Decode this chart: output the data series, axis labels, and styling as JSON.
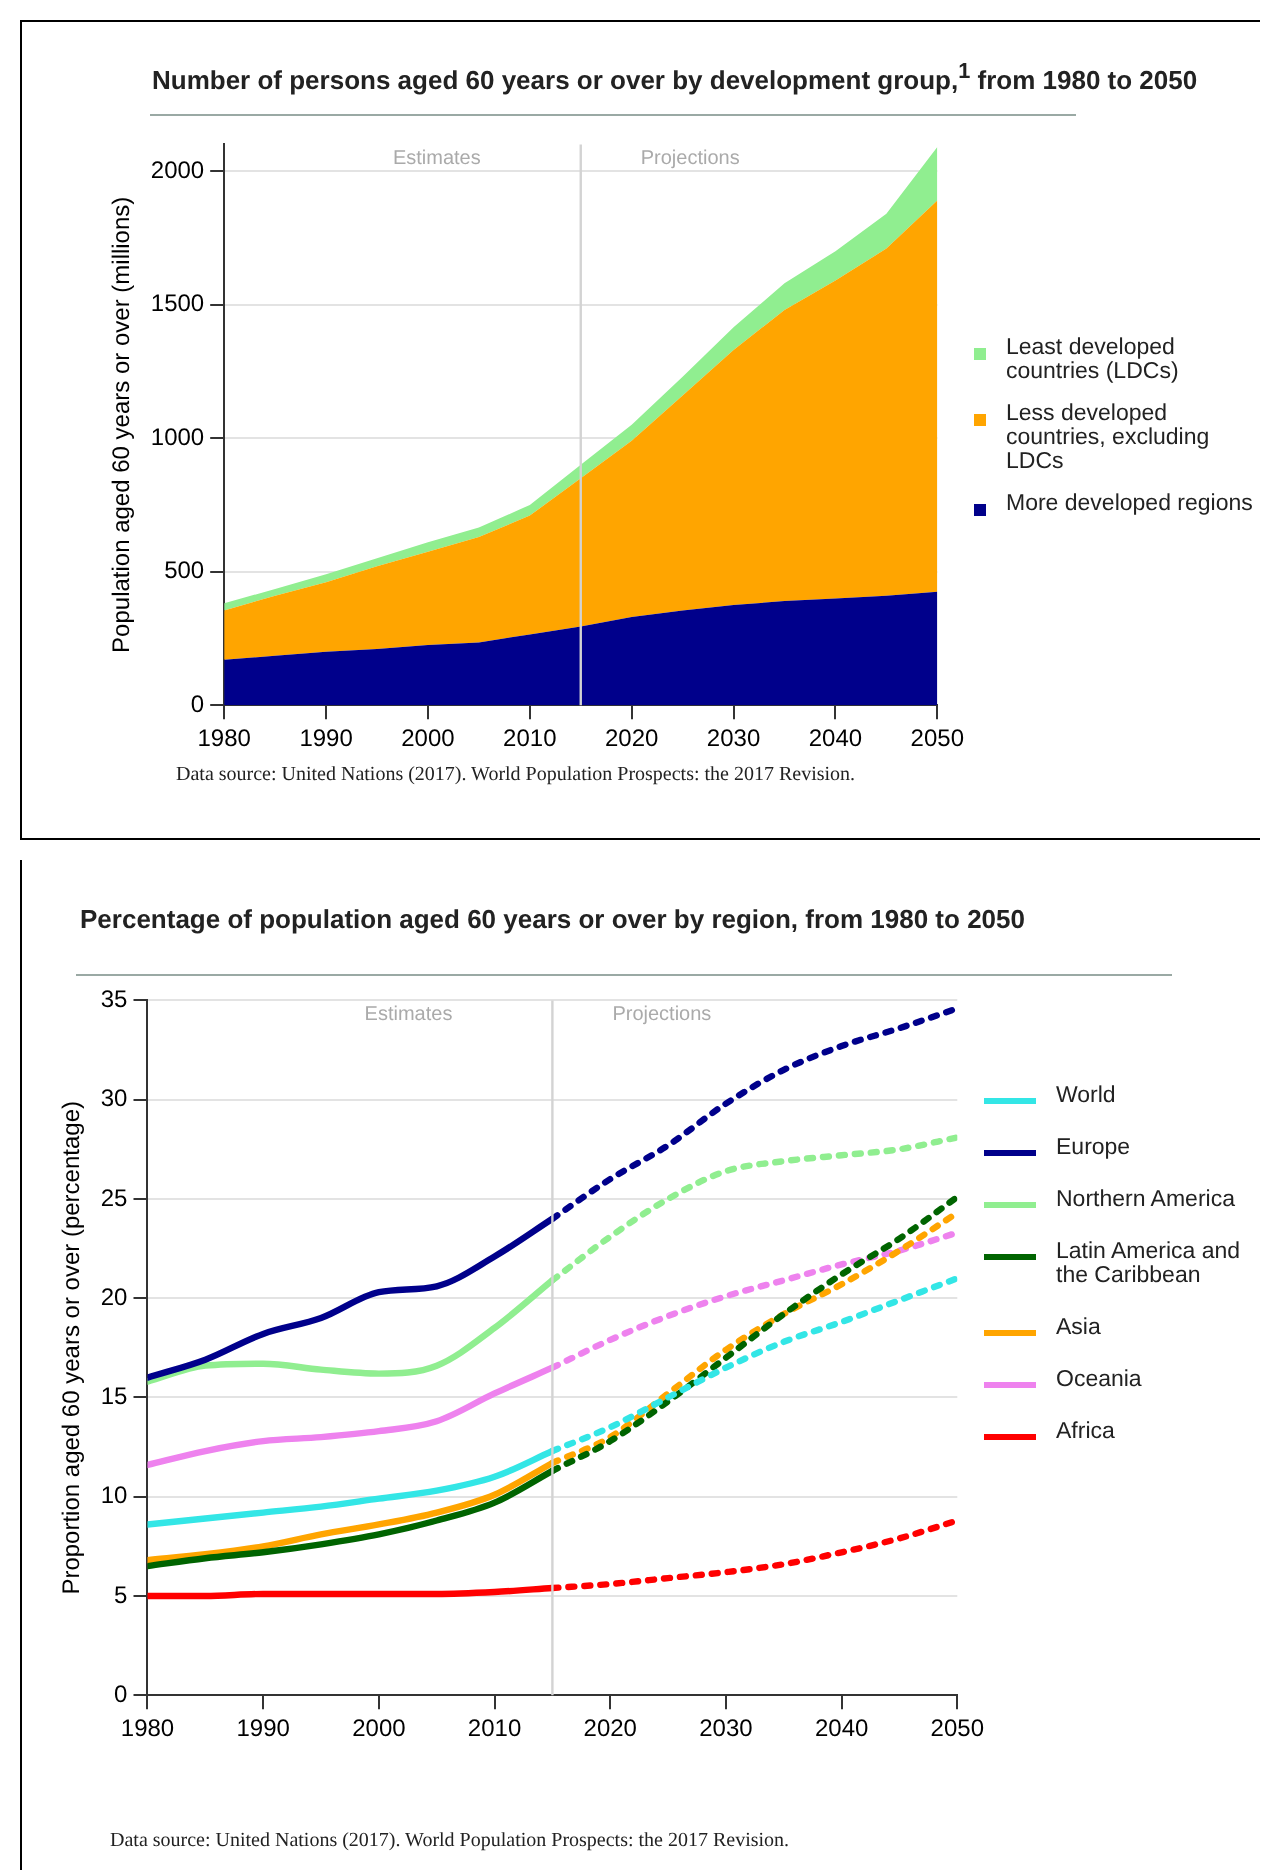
{
  "chart_data": [
    {
      "type": "area",
      "stacked": true,
      "title": "Number of persons aged 60 years or over by development group,$^{1}$ from 1980 to 2050",
      "ylabel": "Population aged 60 years or over (millions)",
      "x": [
        1980,
        1985,
        1990,
        1995,
        2000,
        2005,
        2010,
        2015,
        2020,
        2025,
        2030,
        2035,
        2040,
        2045,
        2050
      ],
      "series": [
        {
          "name": "More developed regions",
          "color": "#00008b",
          "values": [
            170,
            185,
            200,
            210,
            225,
            235,
            265,
            295,
            330,
            355,
            375,
            390,
            400,
            410,
            425
          ]
        },
        {
          "name": "Less developed countries, excluding LDCs",
          "color": "#ffa500",
          "values": [
            185,
            225,
            260,
            310,
            350,
            395,
            445,
            555,
            660,
            805,
            955,
            1090,
            1190,
            1300,
            1465
          ]
        },
        {
          "name": "Least developed countries (LDCs)",
          "color": "#90ee90",
          "values": [
            27,
            25,
            30,
            30,
            35,
            35,
            40,
            50,
            60,
            70,
            85,
            100,
            110,
            130,
            200
          ]
        }
      ],
      "xlim": [
        1980,
        2050
      ],
      "xticks": [
        1980,
        1990,
        2000,
        2010,
        2020,
        2030,
        2040,
        2050
      ],
      "ylim": [
        0,
        2100
      ],
      "yticks": [
        0,
        500,
        1000,
        1500,
        2000
      ],
      "grid": "y",
      "legend": "right",
      "ref_lines": [
        {
          "axis": "x",
          "value": 2015,
          "color": "#d3d3d3"
        }
      ],
      "annotations": [
        "Estimates",
        "Projections",
        "Data source: United Nations (2017). World Population Prospects: the 2017 Revision."
      ]
    },
    {
      "type": "line",
      "title": "Percentage of population aged 60 years or over by region, from 1980 to 2050",
      "ylabel": "Proportion aged 60 years or over (percentage)",
      "x": [
        1980,
        1985,
        1990,
        1995,
        2000,
        2005,
        2010,
        2015,
        2020,
        2025,
        2030,
        2035,
        2040,
        2045,
        2050
      ],
      "series": [
        {
          "name": "World",
          "color": "#33e6e6",
          "values": [
            8.6,
            8.9,
            9.2,
            9.5,
            9.9,
            10.3,
            11.0,
            12.3,
            null,
            null,
            null,
            null,
            null,
            null,
            null
          ]
        },
        {
          "name": "Europe",
          "color": "#00008b",
          "values": [
            16.0,
            16.9,
            18.2,
            19.0,
            20.3,
            20.6,
            22.1,
            24.0,
            null,
            null,
            null,
            null,
            null,
            null,
            null
          ]
        },
        {
          "name": "Northern America",
          "color": "#90ee90",
          "values": [
            15.8,
            16.6,
            16.7,
            16.4,
            16.2,
            16.6,
            18.5,
            20.9,
            null,
            null,
            null,
            null,
            null,
            null,
            null
          ]
        },
        {
          "name": "Latin America and the Caribbean",
          "color": "#006400",
          "values": [
            6.5,
            6.9,
            7.2,
            7.6,
            8.1,
            8.8,
            9.7,
            11.3,
            null,
            null,
            null,
            null,
            null,
            null,
            null
          ]
        },
        {
          "name": "Asia",
          "color": "#ffa500",
          "values": [
            6.8,
            7.1,
            7.5,
            8.1,
            8.6,
            9.2,
            10.1,
            11.7,
            null,
            null,
            null,
            null,
            null,
            null,
            null
          ]
        },
        {
          "name": "Oceania",
          "color": "#ee82ee",
          "values": [
            11.6,
            12.3,
            12.8,
            13.0,
            13.3,
            13.8,
            15.2,
            16.5,
            null,
            null,
            null,
            null,
            null,
            null,
            null
          ]
        },
        {
          "name": "Africa",
          "color": "#ff0000",
          "values": [
            5.0,
            5.0,
            5.1,
            5.1,
            5.1,
            5.1,
            5.2,
            5.4,
            null,
            null,
            null,
            null,
            null,
            null,
            null
          ]
        },
        {
          "color": "#33e6e6",
          "line_style": "dotted",
          "values": [
            null,
            null,
            null,
            null,
            null,
            null,
            null,
            12.3,
            13.5,
            15.0,
            16.5,
            17.8,
            18.8,
            19.9,
            21.0
          ]
        },
        {
          "color": "#00008b",
          "line_style": "dotted",
          "values": [
            null,
            null,
            null,
            null,
            null,
            null,
            null,
            24.0,
            26.0,
            27.7,
            29.8,
            31.5,
            32.7,
            33.6,
            34.6
          ]
        },
        {
          "color": "#90ee90",
          "line_style": "dotted",
          "values": [
            null,
            null,
            null,
            null,
            null,
            null,
            null,
            20.9,
            23.1,
            25.0,
            26.4,
            26.9,
            27.2,
            27.5,
            28.1
          ]
        },
        {
          "color": "#006400",
          "line_style": "dotted",
          "values": [
            null,
            null,
            null,
            null,
            null,
            null,
            null,
            11.3,
            12.8,
            14.8,
            17.0,
            19.2,
            21.2,
            23.0,
            25.1
          ]
        },
        {
          "color": "#ffa500",
          "line_style": "dotted",
          "values": [
            null,
            null,
            null,
            null,
            null,
            null,
            null,
            11.7,
            13.0,
            15.2,
            17.4,
            19.2,
            20.7,
            22.4,
            24.3
          ]
        },
        {
          "color": "#ee82ee",
          "line_style": "dotted",
          "values": [
            null,
            null,
            null,
            null,
            null,
            null,
            null,
            16.5,
            17.9,
            19.1,
            20.1,
            20.9,
            21.7,
            22.4,
            23.3
          ]
        },
        {
          "color": "#ff0000",
          "line_style": "dotted",
          "values": [
            null,
            null,
            null,
            null,
            null,
            null,
            null,
            5.4,
            5.6,
            5.9,
            6.2,
            6.6,
            7.2,
            7.9,
            8.8
          ]
        }
      ],
      "xlim": [
        1980,
        2050
      ],
      "xticks": [
        1980,
        1990,
        2000,
        2010,
        2020,
        2030,
        2040,
        2050
      ],
      "ylim": [
        0,
        35
      ],
      "yticks": [
        0,
        5,
        10,
        15,
        20,
        25,
        30,
        35
      ],
      "grid": "y",
      "legend": "right",
      "line_style": "solid",
      "marker": "none",
      "ref_lines": [
        {
          "axis": "x",
          "value": 2015,
          "color": "#d3d3d3"
        }
      ],
      "annotations": [
        "Estimates",
        "Projections",
        "Data source: United Nations (2017). World Population Prospects: the 2017 Revision."
      ]
    }
  ]
}
